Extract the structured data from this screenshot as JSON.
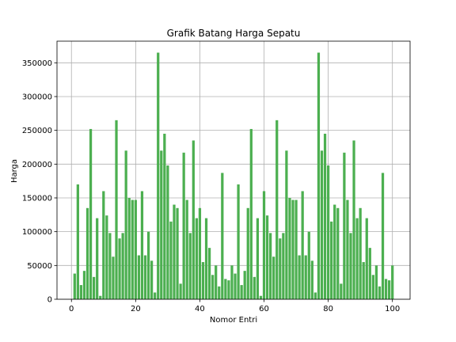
{
  "chart_data": {
    "type": "bar",
    "title": "Grafik Batang Harga Sepatu",
    "xlabel": "Nomor Entri",
    "ylabel": "Harga",
    "xlim": [
      -4.5,
      105.5
    ],
    "ylim": [
      0,
      382000
    ],
    "xticks": [
      0,
      20,
      40,
      60,
      80,
      100
    ],
    "yticks": [
      0,
      50000,
      100000,
      150000,
      200000,
      250000,
      300000,
      350000
    ],
    "grid": true,
    "legend": "none",
    "bar_color": "#4caf50",
    "x": [
      1,
      2,
      3,
      4,
      5,
      6,
      7,
      8,
      9,
      10,
      11,
      12,
      13,
      14,
      15,
      16,
      17,
      18,
      19,
      20,
      21,
      22,
      23,
      24,
      25,
      26,
      27,
      28,
      29,
      30,
      31,
      32,
      33,
      34,
      35,
      36,
      37,
      38,
      39,
      40,
      41,
      42,
      43,
      44,
      45,
      46,
      47,
      48,
      49,
      50,
      51,
      52,
      53,
      54,
      55,
      56,
      57,
      58,
      59,
      60,
      61,
      62,
      63,
      64,
      65,
      66,
      67,
      68,
      69,
      70,
      71,
      72,
      73,
      74,
      75,
      76,
      77,
      78,
      79,
      80,
      81,
      82,
      83,
      84,
      85,
      86,
      87,
      88,
      89,
      90,
      91,
      92,
      93,
      94,
      95,
      96,
      97,
      98,
      99,
      100
    ],
    "values": [
      38000,
      170000,
      21000,
      42000,
      135000,
      252000,
      33000,
      120000,
      5000,
      160000,
      124000,
      98000,
      63000,
      265000,
      90000,
      98000,
      220000,
      150000,
      147000,
      147000,
      65000,
      160000,
      65000,
      100000,
      57000,
      10000,
      365000,
      220000,
      245000,
      198000,
      115000,
      140000,
      135000,
      23000,
      217000,
      147000,
      98000,
      235000,
      120000,
      135000,
      55000,
      120000,
      76000,
      36000,
      50000,
      19000,
      187000,
      30000,
      28000,
      50000,
      38000,
      170000,
      21000,
      42000,
      135000,
      252000,
      33000,
      120000,
      5000,
      160000,
      124000,
      98000,
      63000,
      265000,
      90000,
      98000,
      220000,
      150000,
      147000,
      147000,
      65000,
      160000,
      65000,
      100000,
      57000,
      10000,
      365000,
      220000,
      245000,
      198000,
      115000,
      140000,
      135000,
      23000,
      217000,
      147000,
      98000,
      235000,
      120000,
      135000,
      55000,
      120000,
      76000,
      36000,
      50000,
      19000,
      187000,
      30000,
      28000,
      50000
    ]
  }
}
